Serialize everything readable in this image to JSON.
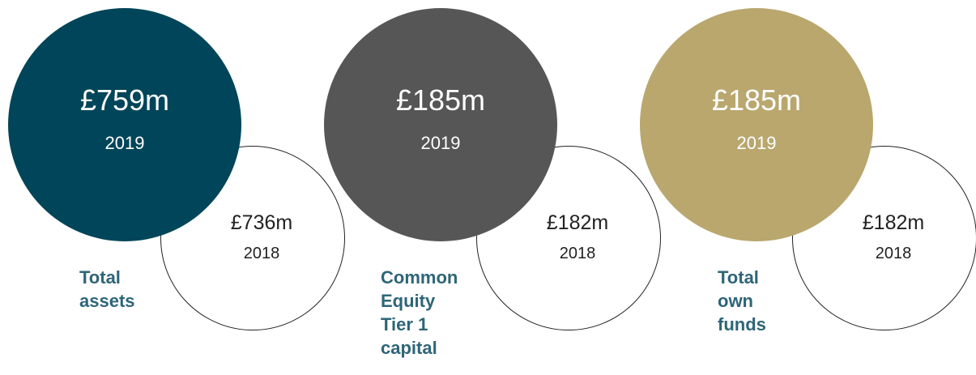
{
  "metrics": [
    {
      "current": {
        "value": "£759m",
        "year": "2019",
        "color": "#004559"
      },
      "previous": {
        "value": "£736m",
        "year": "2018"
      },
      "label_lines": [
        "Total",
        "assets"
      ]
    },
    {
      "current": {
        "value": "£185m",
        "year": "2019",
        "color": "#565656"
      },
      "previous": {
        "value": "£182m",
        "year": "2018"
      },
      "label_lines": [
        "Common",
        "Equity",
        "Tier 1",
        "capital"
      ]
    },
    {
      "current": {
        "value": "£185m",
        "year": "2019",
        "color": "#b9a76e"
      },
      "previous": {
        "value": "£182m",
        "year": "2018"
      },
      "label_lines": [
        "Total",
        "own",
        "funds"
      ]
    }
  ]
}
